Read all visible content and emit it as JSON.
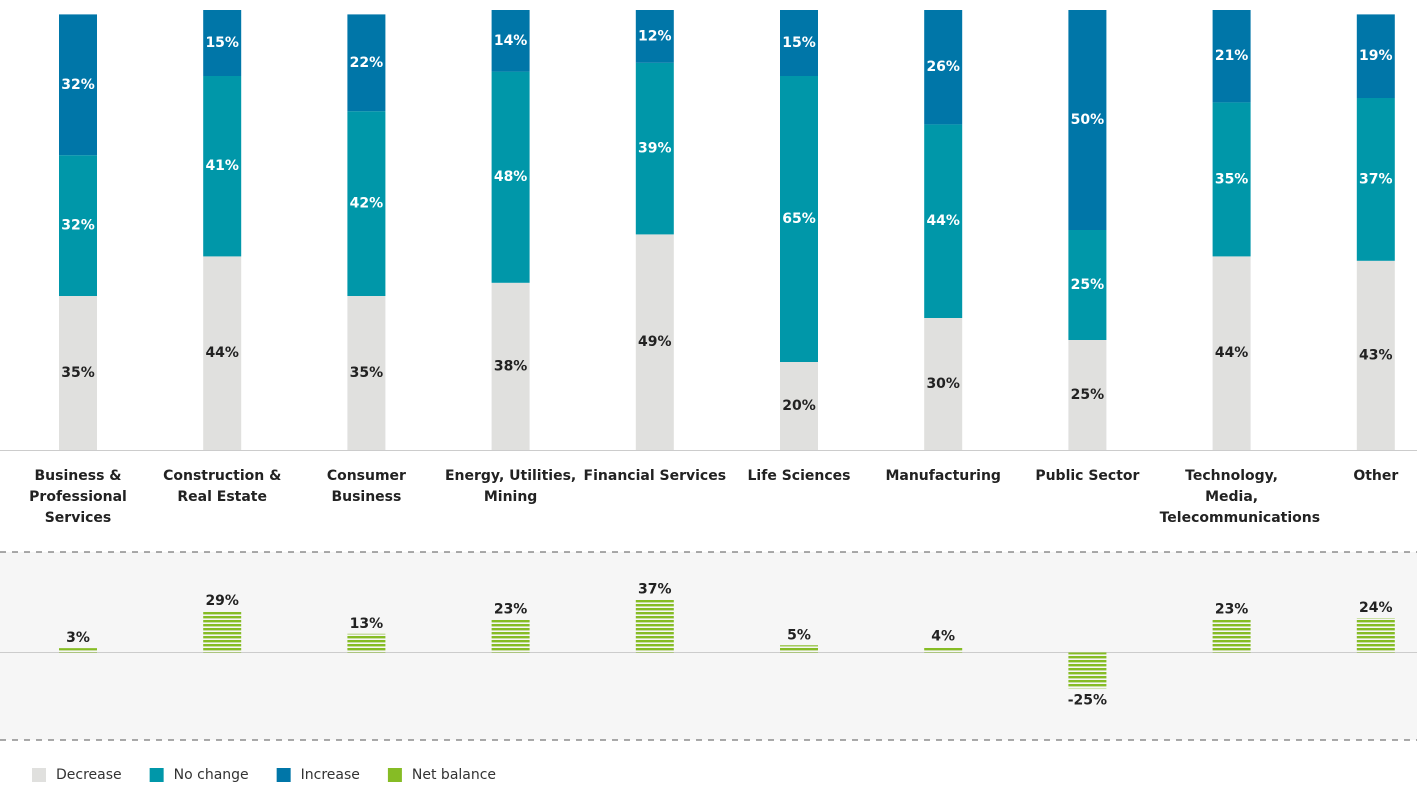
{
  "chart_data": [
    {
      "type": "bar",
      "stacked": true,
      "categories": [
        "Business & Professional Services",
        "Construction & Real Estate",
        "Consumer Business",
        "Energy, Utilities, Mining",
        "Financial Services",
        "Life Sciences",
        "Manufacturing",
        "Public Sector",
        "Technology, Media, Telecommunications",
        "Other"
      ],
      "series": [
        {
          "name": "Decrease",
          "color": "#e0e0de",
          "values": [
            35,
            44,
            35,
            38,
            49,
            20,
            30,
            25,
            44,
            43
          ],
          "value_labels": [
            "35%",
            "44%",
            "35%",
            "38%",
            "49%",
            "20%",
            "30%",
            "25%",
            "44%",
            "43%"
          ]
        },
        {
          "name": "No change",
          "color": "#0097a9",
          "values": [
            32,
            41,
            42,
            48,
            39,
            65,
            44,
            25,
            35,
            37
          ],
          "value_labels": [
            "32%",
            "41%",
            "42%",
            "48%",
            "39%",
            "65%",
            "44%",
            "25%",
            "35%",
            "37%"
          ]
        },
        {
          "name": "Increase",
          "color": "#0076a8",
          "values": [
            32,
            15,
            22,
            14,
            12,
            15,
            26,
            50,
            21,
            19
          ],
          "value_labels": [
            "32%",
            "15%",
            "22%",
            "14%",
            "12%",
            "15%",
            "26%",
            "50%",
            "21%",
            "19%"
          ]
        }
      ],
      "ylim": [
        0,
        100
      ]
    },
    {
      "type": "bar",
      "series": [
        {
          "name": "Net balance",
          "color": "#86bc25",
          "values": [
            3,
            29,
            13,
            23,
            37,
            5,
            4,
            -25,
            23,
            24
          ],
          "value_labels": [
            "3%",
            "29%",
            "13%",
            "23%",
            "37%",
            "5%",
            "4%",
            "-25%",
            "23%",
            "24%"
          ]
        }
      ],
      "ylim": [
        -61,
        70
      ]
    }
  ]
}
